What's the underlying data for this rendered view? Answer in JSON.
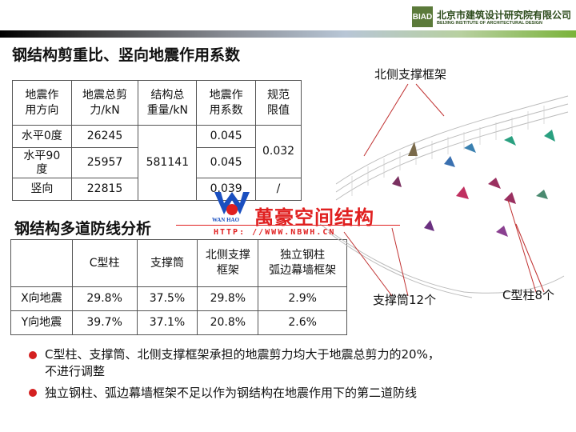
{
  "header": {
    "logo_mark": "BIAD",
    "org_cn": "北京市建筑设计研究院有限公司",
    "org_en": "BEIJING INSTITUTE OF ARCHITECTURAL DESIGN"
  },
  "section1": {
    "title": "钢结构剪重比、竖向地震作用系数",
    "headers": [
      "地震作\n用方向",
      "地震总剪\n力/kN",
      "结构总\n重量/kN",
      "地震作\n用系数",
      "规范\n限值"
    ],
    "rows": [
      {
        "dir": "水平0度",
        "shear": "26245",
        "coef": "0.045"
      },
      {
        "dir": "水平90\n度",
        "shear": "25957",
        "coef": "0.045"
      },
      {
        "dir": "竖向",
        "shear": "22815",
        "coef": "0.039"
      }
    ],
    "weight": "581141",
    "limit_h": "0.032",
    "limit_v": "/"
  },
  "section2": {
    "title": "钢结构多道防线分析",
    "headers": [
      "",
      "C型柱",
      "支撑筒",
      "北侧支撑\n框架",
      "独立钢柱\n弧边幕墙框架"
    ],
    "rows": [
      [
        "X向地震",
        "29.8%",
        "37.5%",
        "29.8%",
        "2.9%"
      ],
      [
        "Y向地震",
        "39.7%",
        "37.1%",
        "20.8%",
        "2.6%"
      ]
    ]
  },
  "bullets": [
    "C型柱、支撑筒、北侧支撑框架承担的地震剪力均大于地震总剪力的20%，\n不进行调整",
    "独立钢柱、弧边幕墙框架不足以作为钢结构在地震作用下的第二道防线"
  ],
  "figure": {
    "label_north": "北侧支撑框架",
    "label_core": "支撑筒12个",
    "label_c": "C型柱8个"
  },
  "watermark": {
    "brand": "萬豪空间结构",
    "latin": "WAN HAO",
    "url": "HTTP: //WWW.NBWH.CN",
    "color": "#e02020"
  }
}
